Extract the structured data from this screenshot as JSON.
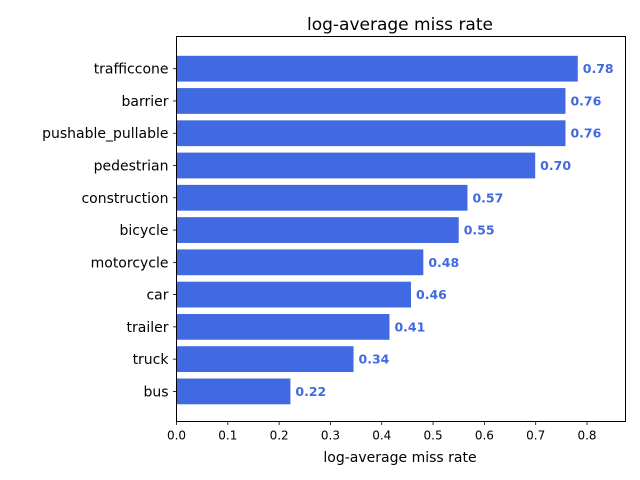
{
  "chart_data": {
    "type": "bar",
    "orientation": "horizontal",
    "title": "log-average miss rate",
    "xlabel": "log-average miss rate",
    "ylabel": "",
    "xlim": [
      0,
      0.875
    ],
    "xticks": [
      "0.0",
      "0.1",
      "0.2",
      "0.3",
      "0.4",
      "0.5",
      "0.6",
      "0.7",
      "0.8"
    ],
    "bar_color": "#4169e1",
    "label_color": "#4169e1",
    "grid": false,
    "categories": [
      "trafficcone",
      "barrier",
      "pushable_pullable",
      "pedestrian",
      "construction",
      "bicycle",
      "motorcycle",
      "car",
      "trailer",
      "truck",
      "bus"
    ],
    "values": [
      0.782,
      0.758,
      0.758,
      0.699,
      0.567,
      0.55,
      0.481,
      0.457,
      0.415,
      0.345,
      0.222
    ],
    "value_labels": [
      "0.78",
      "0.76",
      "0.76",
      "0.70",
      "0.57",
      "0.55",
      "0.48",
      "0.46",
      "0.41",
      "0.34",
      "0.22"
    ]
  }
}
